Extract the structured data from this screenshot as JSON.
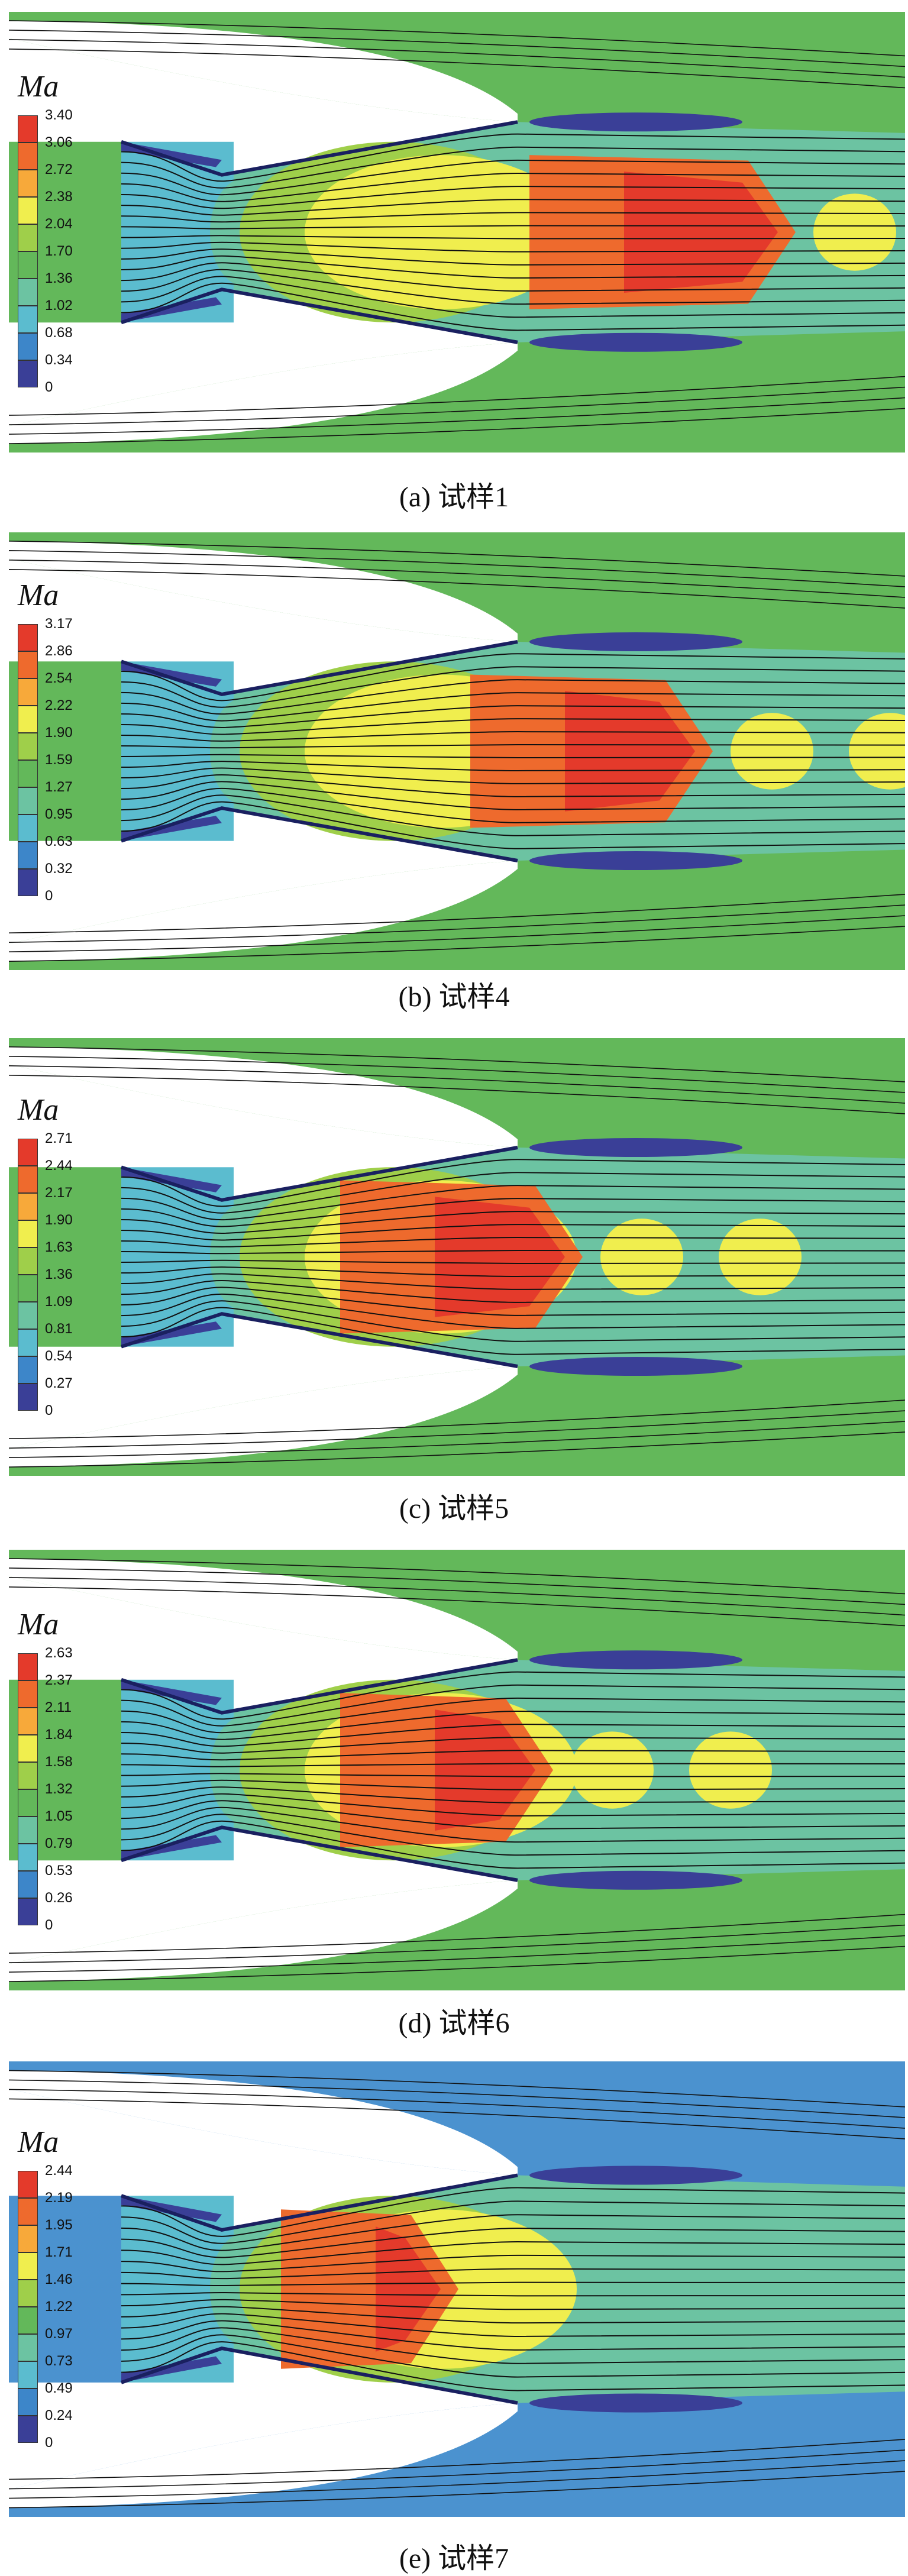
{
  "colors": {
    "scale": [
      "#3a3f97",
      "#3d86c9",
      "#5bbccf",
      "#6cc3a2",
      "#63b85a",
      "#9fcf4a",
      "#f0ee4e",
      "#f7a93a",
      "#ee6a2d",
      "#e43a2b"
    ],
    "outer_flow": "#63b85a",
    "outer_flow_e": "#4b92cf",
    "wall": "#ffffff",
    "streamline": "#111111"
  },
  "panels": [
    {
      "legend_title": "Ma",
      "ticks": [
        "3.40",
        "3.06",
        "2.72",
        "2.38",
        "2.04",
        "1.70",
        "1.36",
        "1.02",
        "0.68",
        "0.34",
        "0"
      ],
      "caption": "(a) 试样1"
    },
    {
      "legend_title": "Ma",
      "ticks": [
        "3.17",
        "2.86",
        "2.54",
        "2.22",
        "1.90",
        "1.59",
        "1.27",
        "0.95",
        "0.63",
        "0.32",
        "0"
      ],
      "caption": "(b) 试样4"
    },
    {
      "legend_title": "Ma",
      "ticks": [
        "2.71",
        "2.44",
        "2.17",
        "1.90",
        "1.63",
        "1.36",
        "1.09",
        "0.81",
        "0.54",
        "0.27",
        "0"
      ],
      "caption": "(c) 试样5"
    },
    {
      "legend_title": "Ma",
      "ticks": [
        "2.63",
        "2.37",
        "2.11",
        "1.84",
        "1.58",
        "1.32",
        "1.05",
        "0.79",
        "0.53",
        "0.26",
        "0"
      ],
      "caption": "(d) 试样6"
    },
    {
      "legend_title": "Ma",
      "ticks": [
        "2.44",
        "2.19",
        "1.95",
        "1.71",
        "1.46",
        "1.22",
        "0.97",
        "0.73",
        "0.49",
        "0.24",
        "0"
      ],
      "caption": "(e) 试样7"
    }
  ]
}
